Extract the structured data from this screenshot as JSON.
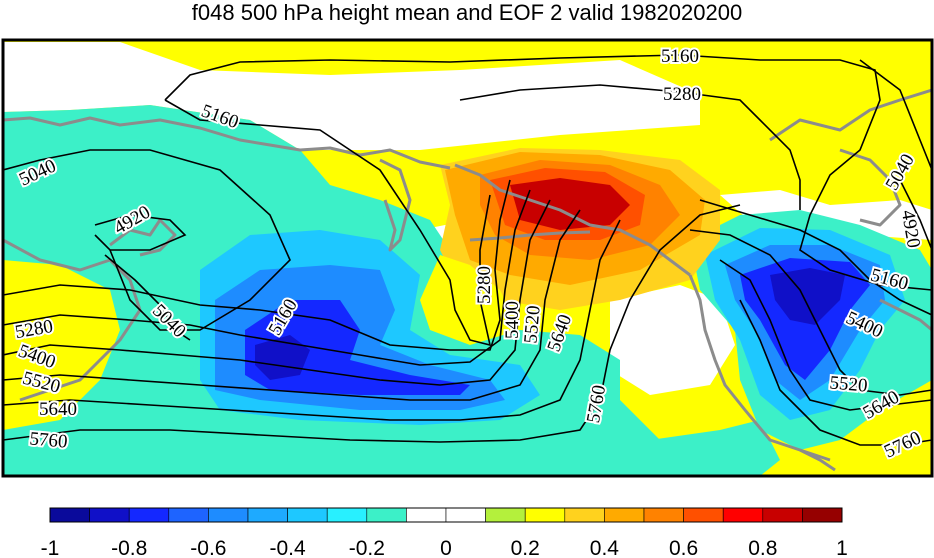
{
  "chart_data": {
    "type": "heatmap",
    "title": "f048 500 hPa height mean and EOF 2 valid 1982020200",
    "colorbar": {
      "ticks": [
        "-1",
        "-0.8",
        "-0.6",
        "-0.4",
        "-0.2",
        "0",
        "0.2",
        "0.4",
        "0.6",
        "0.8",
        "1"
      ],
      "bins": [
        {
          "from": -1.0,
          "to": -0.9,
          "color": "#0a0a9b"
        },
        {
          "from": -0.9,
          "to": -0.8,
          "color": "#1010c8"
        },
        {
          "from": -0.8,
          "to": -0.7,
          "color": "#1428ff"
        },
        {
          "from": -0.7,
          "to": -0.6,
          "color": "#1e64ff"
        },
        {
          "from": -0.6,
          "to": -0.5,
          "color": "#1e8cff"
        },
        {
          "from": -0.5,
          "to": -0.4,
          "color": "#1eaaff"
        },
        {
          "from": -0.4,
          "to": -0.3,
          "color": "#1ec8ff"
        },
        {
          "from": -0.3,
          "to": -0.2,
          "color": "#28f0ff"
        },
        {
          "from": -0.2,
          "to": -0.1,
          "color": "#3cf0c8"
        },
        {
          "from": -0.1,
          "to": 0.0,
          "color": "#ffffff"
        },
        {
          "from": 0.0,
          "to": 0.1,
          "color": "#ffffff"
        },
        {
          "from": 0.1,
          "to": 0.2,
          "color": "#b4f03c"
        },
        {
          "from": 0.2,
          "to": 0.3,
          "color": "#ffff00"
        },
        {
          "from": 0.3,
          "to": 0.4,
          "color": "#ffd21e"
        },
        {
          "from": 0.4,
          "to": 0.5,
          "color": "#ffaa00"
        },
        {
          "from": 0.5,
          "to": 0.6,
          "color": "#ff8200"
        },
        {
          "from": 0.6,
          "to": 0.7,
          "color": "#ff5000"
        },
        {
          "from": 0.7,
          "to": 0.8,
          "color": "#ff0000"
        },
        {
          "from": 0.8,
          "to": 0.9,
          "color": "#c80000"
        },
        {
          "from": 0.9,
          "to": 1.0,
          "color": "#960000"
        }
      ]
    },
    "contour_levels": [
      "4920",
      "5040",
      "5160",
      "5280",
      "5400",
      "5520",
      "5640",
      "5760"
    ],
    "contour_label_instances": [
      "5160",
      "5280",
      "5160",
      "5040",
      "4920",
      "5040",
      "5160",
      "5280",
      "5400",
      "5520",
      "5640",
      "5760",
      "5280",
      "5400",
      "5520",
      "5640",
      "5760",
      "5040",
      "4920",
      "5160",
      "5400",
      "5520",
      "5640",
      "5760"
    ]
  }
}
